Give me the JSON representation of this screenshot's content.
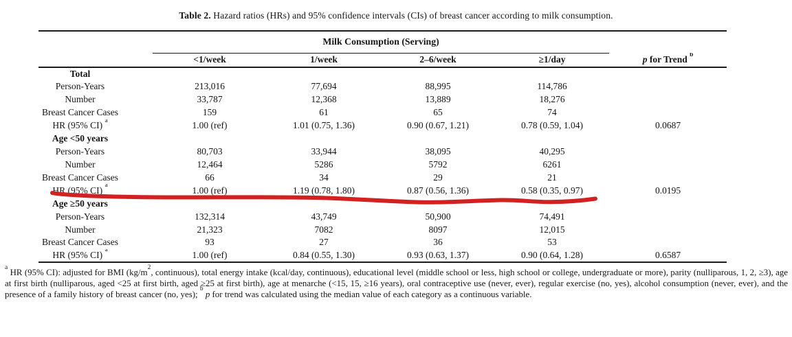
{
  "title": {
    "label": "Table 2.",
    "text": " Hazard ratios (HRs) and 95% confidence intervals (CIs) of breast cancer according to milk consumption."
  },
  "table": {
    "group_header": "Milk Consumption (Serving)",
    "columns": [
      "<1/week",
      "1/week",
      "2–6/week",
      "≥1/day"
    ],
    "p_trend_header": {
      "italic": "p",
      "text": " for Trend ",
      "sup": "b"
    },
    "sections": [
      {
        "label": "Total",
        "rows": [
          {
            "label": "Person-Years",
            "values": [
              "213,016",
              "77,694",
              "88,995",
              "114,786"
            ],
            "p": ""
          },
          {
            "label": "Number",
            "values": [
              "33,787",
              "12,368",
              "13,889",
              "18,276"
            ],
            "p": ""
          },
          {
            "label": "Breast Cancer Cases",
            "values": [
              "159",
              "61",
              "65",
              "74"
            ],
            "p": ""
          },
          {
            "label": "HR (95% CI)",
            "label_sup": "a",
            "values": [
              "1.00 (ref)",
              "1.01 (0.75, 1.36)",
              "0.90 (0.67, 1.21)",
              "0.78 (0.59, 1.04)"
            ],
            "p": "0.0687"
          }
        ]
      },
      {
        "label": "Age <50 years",
        "rows": [
          {
            "label": "Person-Years",
            "values": [
              "80,703",
              "33,944",
              "38,095",
              "40,295"
            ],
            "p": ""
          },
          {
            "label": "Number",
            "values": [
              "12,464",
              "5286",
              "5792",
              "6261"
            ],
            "p": ""
          },
          {
            "label": "Breast Cancer Cases",
            "values": [
              "66",
              "34",
              "29",
              "21"
            ],
            "p": ""
          },
          {
            "label": "HR (95% CI)",
            "label_sup": "a",
            "values": [
              "1.00 (ref)",
              "1.19 (0.78, 1.80)",
              "0.87 (0.56, 1.36)",
              "0.58 (0.35, 0.97)"
            ],
            "p": "0.0195",
            "highlighted": true
          }
        ]
      },
      {
        "label": "Age ≥50 years",
        "rows": [
          {
            "label": "Person-Years",
            "values": [
              "132,314",
              "43,749",
              "50,900",
              "74,491"
            ],
            "p": ""
          },
          {
            "label": "Number",
            "values": [
              "21,323",
              "7082",
              "8097",
              "12,015"
            ],
            "p": ""
          },
          {
            "label": "Breast Cancer Cases",
            "values": [
              "93",
              "27",
              "36",
              "53"
            ],
            "p": ""
          },
          {
            "label": "HR (95% CI)",
            "label_sup": "a",
            "values": [
              "1.00 (ref)",
              "0.84 (0.55, 1.30)",
              "0.93 (0.63, 1.37)",
              "0.90 (0.64, 1.28)"
            ],
            "p": "0.6587"
          }
        ]
      }
    ]
  },
  "annotation": {
    "marker_color": "#d32121",
    "description": "hand-drawn red marker underline across the HR (95% CI) row of the Age <50 years section"
  },
  "footnote": {
    "sup1": "a",
    "part1": " HR (95% CI): adjusted for BMI (kg/m",
    "sup2": "2",
    "part2": ", continuous), total energy intake (kcal/day, continuous), educational level (middle school or less, high school or college, undergraduate or more), parity (nulliparous, 1, 2, ≥3), age at first birth (nulliparous, aged <25 at first birth, aged ≥25 at first birth), age at menarche (<15, 15, ≥16 years), oral contraceptive use (never, ever), regular exercise (no, yes), alcohol consumption (never, ever), and the presence of a family history of breast cancer (no, yes); ",
    "sup3": "b",
    "part3_italic": "p",
    "part4": " for trend was calculated using the median value of each category as a continuous variable."
  }
}
